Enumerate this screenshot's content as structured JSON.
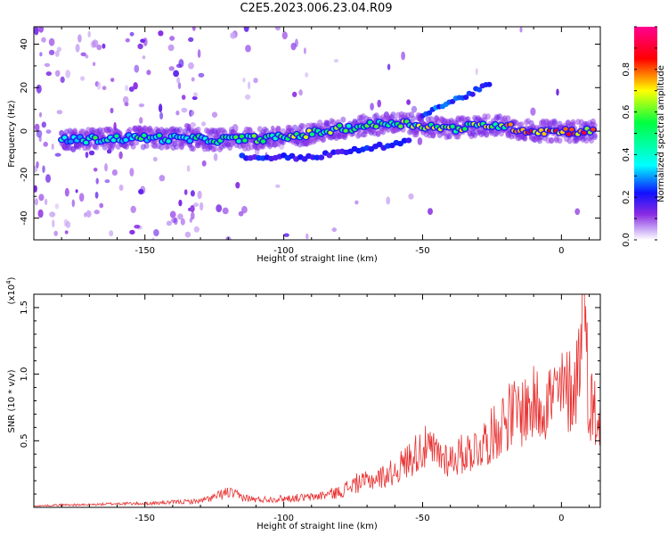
{
  "title": "C2E5.2023.006.23.04.R09",
  "chart_data": [
    {
      "type": "heatmap",
      "title": "C2E5.2023.006.23.04.R09",
      "xlabel": "Height of straight line (km)",
      "ylabel": "Frequency (Hz)",
      "xlim": [
        -190,
        14
      ],
      "ylim": [
        -50,
        48
      ],
      "x_ticks": [
        -150,
        -100,
        -50,
        0
      ],
      "y_ticks": [
        -40,
        -20,
        0,
        20,
        40
      ],
      "colorbar": {
        "label": "Normalized spectral amplitude",
        "range": [
          0.0,
          1.0
        ],
        "ticks": [
          0.0,
          0.2,
          0.4,
          0.6,
          0.8
        ]
      },
      "ridge": {
        "description_points": [
          {
            "x": -175,
            "y": -4
          },
          {
            "x": -150,
            "y": -3
          },
          {
            "x": -125,
            "y": -4
          },
          {
            "x": -100,
            "y": -3
          },
          {
            "x": -80,
            "y": 1
          },
          {
            "x": -60,
            "y": 4
          },
          {
            "x": -40,
            "y": 1
          },
          {
            "x": -25,
            "y": 3
          },
          {
            "x": -10,
            "y": 0
          },
          {
            "x": 10,
            "y": 0
          }
        ],
        "secondary_branch": [
          {
            "x": -115,
            "y": -12
          },
          {
            "x": -90,
            "y": -12
          },
          {
            "x": -70,
            "y": -8
          },
          {
            "x": -55,
            "y": -5
          }
        ],
        "upper_branch": [
          {
            "x": -50,
            "y": 8
          },
          {
            "x": -35,
            "y": 16
          },
          {
            "x": -25,
            "y": 22
          }
        ]
      }
    },
    {
      "type": "line",
      "title": "",
      "xlabel": "Height of straight line (km)",
      "ylabel": "SNR (10 * v/v)",
      "y_multiplier": "(x10",
      "y_multiplier_exp": "4",
      "xlim": [
        -190,
        14
      ],
      "ylim": [
        0,
        1.6
      ],
      "x_ticks": [
        -150,
        -100,
        -50,
        0
      ],
      "y_ticks": [
        0.5,
        1.0,
        1.5
      ],
      "y_tick_labels": [
        "0.5",
        "1.0",
        "1.5"
      ],
      "series": [
        {
          "name": "",
          "x": [
            -190,
            -180,
            -170,
            -160,
            -150,
            -140,
            -130,
            -125,
            -120,
            -115,
            -110,
            -100,
            -90,
            -80,
            -75,
            -70,
            -65,
            -60,
            -55,
            -50,
            -45,
            -40,
            -35,
            -30,
            -25,
            -20,
            -15,
            -10,
            -5,
            0,
            5,
            8,
            10,
            14
          ],
          "y": [
            0.01,
            0.02,
            0.02,
            0.03,
            0.03,
            0.04,
            0.05,
            0.08,
            0.12,
            0.08,
            0.06,
            0.07,
            0.08,
            0.12,
            0.18,
            0.22,
            0.25,
            0.3,
            0.4,
            0.5,
            0.45,
            0.4,
            0.45,
            0.5,
            0.6,
            0.75,
            0.8,
            0.85,
            0.9,
            0.95,
            1.0,
            1.6,
            0.9,
            0.7
          ]
        }
      ]
    }
  ],
  "colors": {
    "line": "#e83232",
    "axis": "#000000"
  }
}
